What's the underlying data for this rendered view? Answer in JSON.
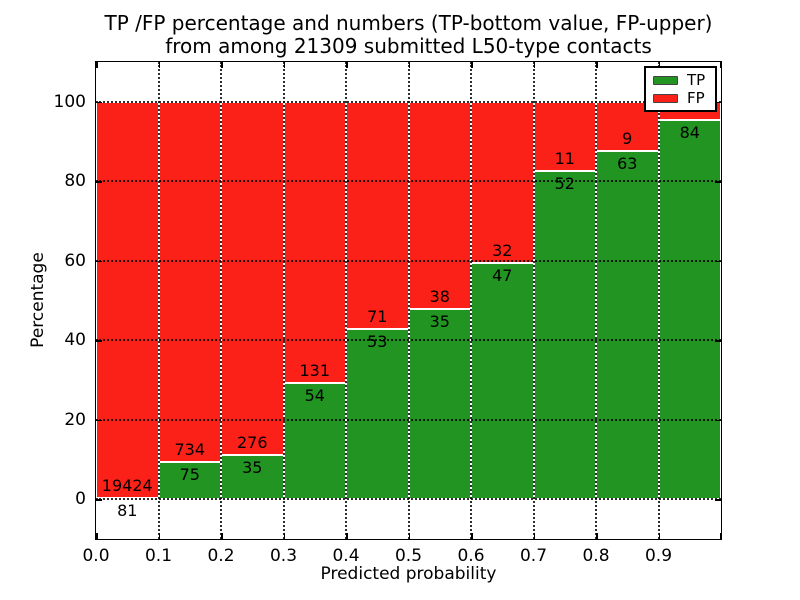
{
  "chart_data": {
    "type": "bar",
    "stacked": true,
    "title": "TP /FP percentage and numbers (TP-bottom value, FP-upper) from among 21309 submitted L50-type contacts",
    "title_lines": [
      "TP /FP percentage and numbers (TP-bottom value, FP-upper)",
      "from among 21309 submitted L50-type contacts"
    ],
    "total_contacts": 21309,
    "xlabel": "Predicted probability",
    "ylabel": "Percentage",
    "xlim": [
      0.0,
      1.0
    ],
    "ylim": [
      -10,
      110
    ],
    "grid": "dotted",
    "x_ticks": [
      "0.0",
      "0.1",
      "0.2",
      "0.3",
      "0.4",
      "0.5",
      "0.6",
      "0.7",
      "0.8",
      "0.9"
    ],
    "y_ticks": [
      0,
      20,
      40,
      60,
      80,
      100
    ],
    "colors": {
      "tp": "#219421",
      "fp": "#fb2018",
      "grid": "#000000",
      "frame": "#000000"
    },
    "legend": {
      "position": "upper right",
      "entries": [
        {
          "label": "TP",
          "color": "#219421"
        },
        {
          "label": "FP",
          "color": "#fb2018"
        }
      ]
    },
    "bins": [
      {
        "range": [
          0.0,
          0.1
        ],
        "tp_count": 81,
        "fp_count": 19424,
        "tp_pct": 0.42,
        "fp_pct": 99.58,
        "tp_label": "81",
        "fp_label": "19424"
      },
      {
        "range": [
          0.1,
          0.2
        ],
        "tp_count": 75,
        "fp_count": 734,
        "tp_pct": 9.27,
        "fp_pct": 90.73,
        "tp_label": "75",
        "fp_label": "734"
      },
      {
        "range": [
          0.2,
          0.3
        ],
        "tp_count": 35,
        "fp_count": 276,
        "tp_pct": 11.25,
        "fp_pct": 88.75,
        "tp_label": "35",
        "fp_label": "276"
      },
      {
        "range": [
          0.3,
          0.4
        ],
        "tp_count": 54,
        "fp_count": 131,
        "tp_pct": 29.19,
        "fp_pct": 70.81,
        "tp_label": "54",
        "fp_label": "131"
      },
      {
        "range": [
          0.4,
          0.5
        ],
        "tp_count": 53,
        "fp_count": 71,
        "tp_pct": 42.74,
        "fp_pct": 57.26,
        "tp_label": "53",
        "fp_label": "71"
      },
      {
        "range": [
          0.5,
          0.6
        ],
        "tp_count": 35,
        "fp_count": 38,
        "tp_pct": 47.95,
        "fp_pct": 52.05,
        "tp_label": "35",
        "fp_label": "38"
      },
      {
        "range": [
          0.6,
          0.7
        ],
        "tp_count": 47,
        "fp_count": 32,
        "tp_pct": 59.49,
        "fp_pct": 40.51,
        "tp_label": "47",
        "fp_label": "32"
      },
      {
        "range": [
          0.7,
          0.8
        ],
        "tp_count": 52,
        "fp_count": 11,
        "tp_pct": 82.54,
        "fp_pct": 17.46,
        "tp_label": "52",
        "fp_label": "11"
      },
      {
        "range": [
          0.8,
          0.9
        ],
        "tp_count": 63,
        "fp_count": 9,
        "tp_pct": 87.5,
        "fp_pct": 12.5,
        "tp_label": "63",
        "fp_label": "9"
      },
      {
        "range": [
          0.9,
          1.0
        ],
        "tp_count": 84,
        "fp_count": null,
        "tp_pct": 95.45,
        "fp_pct": 4.55,
        "tp_label": "84",
        "fp_label": ""
      }
    ]
  }
}
